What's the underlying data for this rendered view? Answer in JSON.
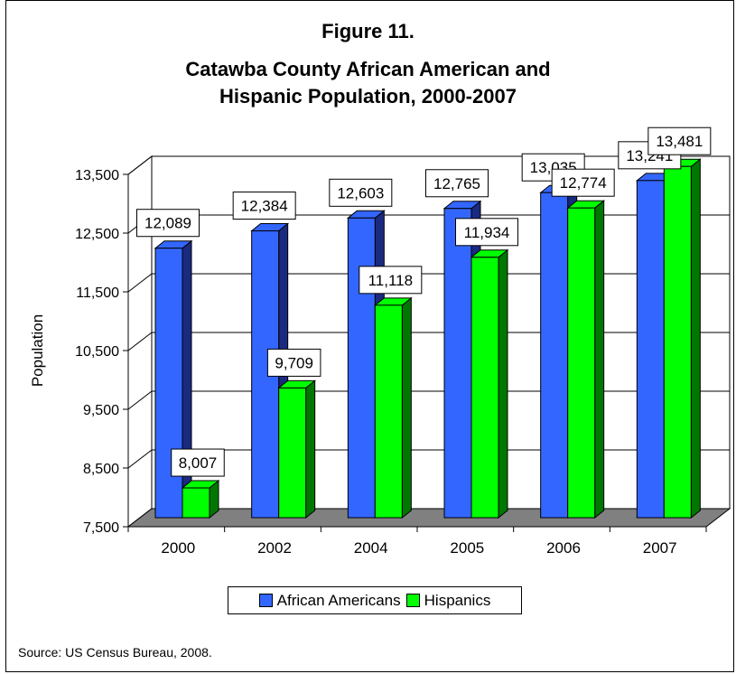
{
  "figure": {
    "label": "Figure 11.",
    "title_line1": "Catawba County African American and",
    "title_line2": "Hispanic Population, 2000-2007",
    "source": "Source: US Census Bureau, 2008."
  },
  "colors": {
    "african_americans": "#3366ff",
    "african_americans_side": "#1a2a80",
    "hispanics": "#00ff00",
    "hispanics_side": "#007700",
    "floor": "#808080"
  },
  "chart_data": {
    "type": "bar",
    "title": "Catawba County African American and Hispanic Population, 2000-2007",
    "xlabel": "",
    "ylabel": "Population",
    "ylim": [
      7500,
      13500
    ],
    "yticks": [
      "7,500",
      "8,500",
      "9,500",
      "10,500",
      "11,500",
      "12,500",
      "13,500"
    ],
    "ytick_values": [
      7500,
      8500,
      9500,
      10500,
      11500,
      12500,
      13500
    ],
    "categories": [
      "2000",
      "2002",
      "2004",
      "2005",
      "2006",
      "2007"
    ],
    "series": [
      {
        "name": "African Americans",
        "values": [
          12089,
          12384,
          12603,
          12765,
          13035,
          13241
        ],
        "labels": [
          "12,089",
          "12,384",
          "12,603",
          "12,765",
          "13,035",
          "13,241"
        ]
      },
      {
        "name": "Hispanics",
        "values": [
          8007,
          9709,
          11118,
          11934,
          12774,
          13481
        ],
        "labels": [
          "8,007",
          "9,709",
          "11,118",
          "11,934",
          "12,774",
          "13,481"
        ]
      }
    ],
    "grid": true,
    "legend": "bottom"
  }
}
